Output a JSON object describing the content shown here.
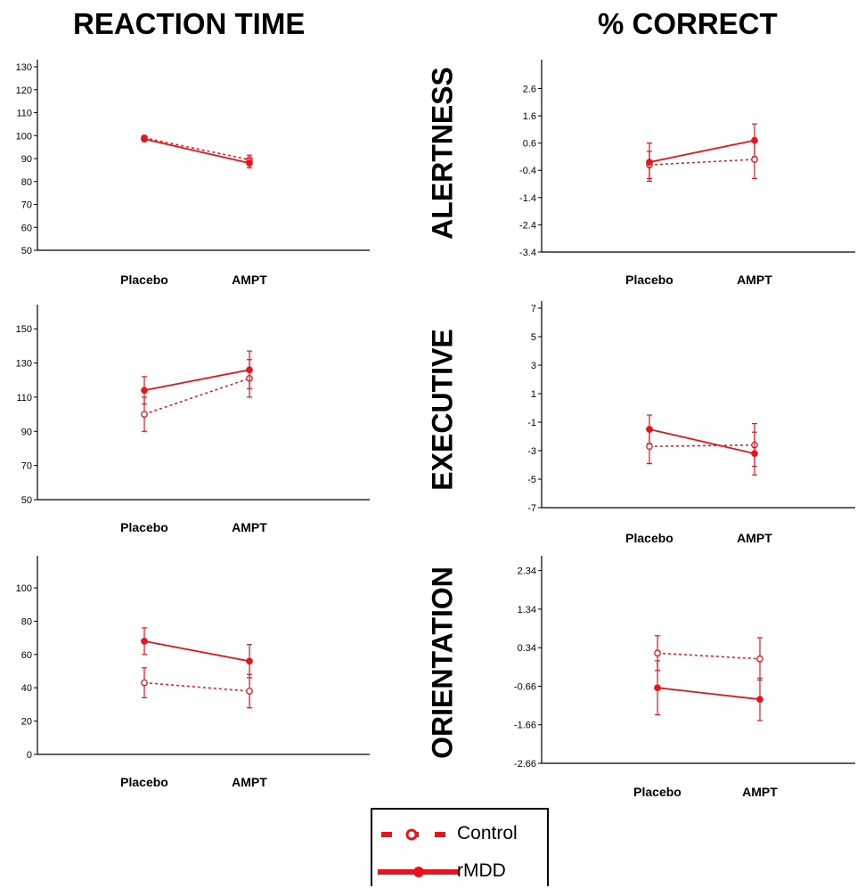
{
  "headers": {
    "left": "REACTION TIME",
    "right": "% CORRECT"
  },
  "rows": [
    "ALERTNESS",
    "EXECUTIVE",
    "ORIENTATION"
  ],
  "legend": {
    "control": "Control",
    "rmdd": "rMDD"
  },
  "colors": {
    "series": "#e8131b",
    "axis": "#000000"
  },
  "chart_data": [
    {
      "type": "line",
      "panel": "reaction-time-alertness",
      "categories": [
        "Placebo",
        "AMPT"
      ],
      "ylim": [
        50,
        130
      ],
      "yticks": [
        "50",
        "60",
        "70",
        "80",
        "90",
        "100",
        "110",
        "120",
        "130"
      ],
      "series": [
        {
          "name": "Control",
          "style": "dotted",
          "marker": "open-circle",
          "values": [
            99,
            89.5
          ],
          "err": [
            1,
            2
          ]
        },
        {
          "name": "rMDD",
          "style": "solid",
          "marker": "filled-circle",
          "values": [
            98.5,
            88
          ],
          "err": [
            1,
            2
          ]
        }
      ]
    },
    {
      "type": "line",
      "panel": "reaction-time-executive",
      "categories": [
        "Placebo",
        "AMPT"
      ],
      "ylim": [
        50,
        160
      ],
      "yticks": [
        "50",
        "70",
        "90",
        "110",
        "130",
        "150"
      ],
      "series": [
        {
          "name": "Control",
          "style": "dotted",
          "marker": "open-circle",
          "values": [
            100,
            121
          ],
          "err": [
            10,
            11
          ]
        },
        {
          "name": "rMDD",
          "style": "solid",
          "marker": "filled-circle",
          "values": [
            114,
            126
          ],
          "err": [
            8,
            11
          ]
        }
      ]
    },
    {
      "type": "line",
      "panel": "reaction-time-orientation",
      "categories": [
        "Placebo",
        "AMPT"
      ],
      "ylim": [
        0,
        115
      ],
      "yticks": [
        "0",
        "20",
        "40",
        "60",
        "80",
        "100"
      ],
      "series": [
        {
          "name": "Control",
          "style": "dotted",
          "marker": "open-circle",
          "values": [
            43,
            38
          ],
          "err": [
            9,
            10
          ]
        },
        {
          "name": "rMDD",
          "style": "solid",
          "marker": "filled-circle",
          "values": [
            68,
            56
          ],
          "err": [
            8,
            10
          ]
        }
      ]
    },
    {
      "type": "line",
      "panel": "correct-alertness",
      "categories": [
        "Placebo",
        "AMPT"
      ],
      "ylim": [
        -3.4,
        3.4
      ],
      "yticks": [
        "-3.4",
        "-2.4",
        "-1.4",
        "-0.4",
        "0.6",
        "1.6",
        "2.6"
      ],
      "series": [
        {
          "name": "Control",
          "style": "dotted",
          "marker": "open-circle",
          "values": [
            -0.2,
            0.0
          ],
          "err": [
            0.5,
            0.7
          ]
        },
        {
          "name": "rMDD",
          "style": "solid",
          "marker": "filled-circle",
          "values": [
            -0.1,
            0.7
          ],
          "err": [
            0.7,
            0.6
          ]
        }
      ]
    },
    {
      "type": "line",
      "panel": "correct-executive",
      "categories": [
        "Placebo",
        "AMPT"
      ],
      "ylim": [
        -7,
        7
      ],
      "yticks": [
        "-7",
        "-5",
        "-3",
        "-1",
        "1",
        "3",
        "5",
        "7"
      ],
      "series": [
        {
          "name": "Control",
          "style": "dotted",
          "marker": "open-circle",
          "values": [
            -2.7,
            -2.6
          ],
          "err": [
            1.2,
            1.5
          ]
        },
        {
          "name": "rMDD",
          "style": "solid",
          "marker": "filled-circle",
          "values": [
            -1.5,
            -3.2
          ],
          "err": [
            1.0,
            1.5
          ]
        }
      ]
    },
    {
      "type": "line",
      "panel": "correct-orientation",
      "categories": [
        "Placebo",
        "AMPT"
      ],
      "ylim": [
        -2.66,
        2.54
      ],
      "yticks": [
        "-2.66",
        "-1.66",
        "-0.66",
        "0.34",
        "1.34",
        "2.34"
      ],
      "series": [
        {
          "name": "Control",
          "style": "dotted",
          "marker": "open-circle",
          "values": [
            0.2,
            0.05
          ],
          "err": [
            0.45,
            0.55
          ]
        },
        {
          "name": "rMDD",
          "style": "solid",
          "marker": "filled-circle",
          "values": [
            -0.7,
            -1.0
          ],
          "err": [
            0.7,
            0.55
          ]
        }
      ]
    }
  ]
}
